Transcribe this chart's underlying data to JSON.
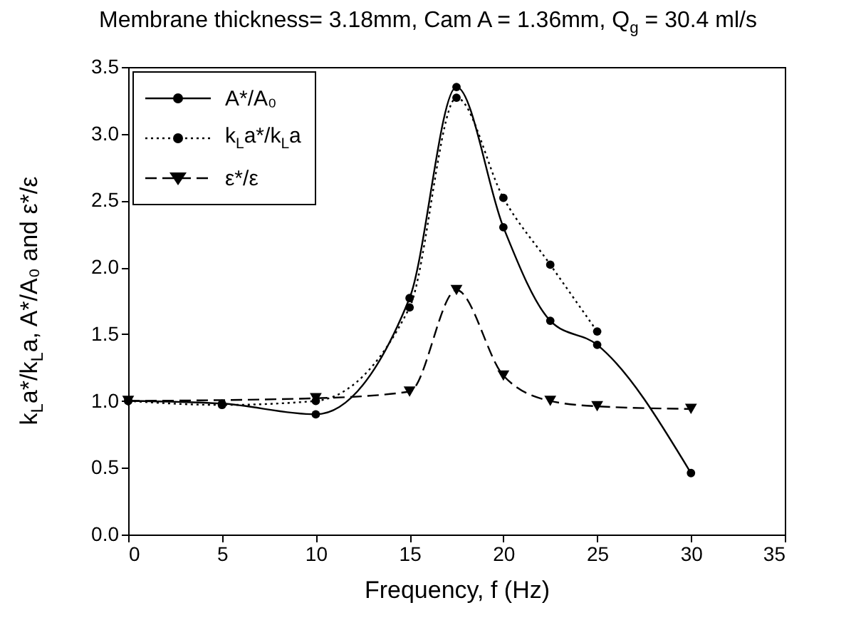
{
  "chart_data": {
    "type": "line",
    "title": "Membrane thickness= 3.18mm, Cam A = 1.36mm, Q$_{g}$ = 30.4 ml/s",
    "xlabel": "Frequency, f (Hz)",
    "ylabel": "k$_{L}$a*/k$_{L}$a, A*/A₀ and ε*/ε",
    "xlim": [
      0,
      35
    ],
    "xticks": [
      0,
      5,
      10,
      15,
      20,
      25,
      30,
      35
    ],
    "ylim": [
      0,
      3.5
    ],
    "yticks": [
      {
        "value": 0,
        "label": "0.0"
      },
      {
        "value": 0.5,
        "label": "0.5"
      },
      {
        "value": 1,
        "label": "1.0"
      },
      {
        "value": 1.5,
        "label": "1.5"
      },
      {
        "value": 2,
        "label": "2.0"
      },
      {
        "value": 2.5,
        "label": "2.5"
      },
      {
        "value": 3,
        "label": "3.0"
      },
      {
        "value": 3.5,
        "label": "3.5"
      }
    ],
    "legend": "top left",
    "grid": false,
    "series": [
      {
        "name": "A*/A₀",
        "color": "#000000",
        "marker": "circle",
        "line_style": "solid",
        "x": [
          0,
          5,
          10,
          15,
          17.5,
          20,
          22.5,
          25,
          30
        ],
        "values": [
          1.0,
          0.98,
          0.9,
          1.77,
          3.35,
          2.3,
          1.6,
          1.42,
          0.46
        ]
      },
      {
        "name": "k$_{L}$a*/k$_{L}$a",
        "color": "#000000",
        "marker": "circle",
        "line_style": "dotted",
        "x": [
          0,
          5,
          10,
          15,
          17.5,
          20,
          22.5,
          25
        ],
        "values": [
          1.0,
          0.97,
          1.0,
          1.7,
          3.27,
          2.52,
          2.02,
          1.52
        ]
      },
      {
        "name": "ε*/ε",
        "color": "#000000",
        "marker": "triangle",
        "line_style": "dashed",
        "x": [
          0,
          10,
          15,
          17.5,
          20,
          22.5,
          25,
          30
        ],
        "values": [
          1.0,
          1.02,
          1.07,
          1.83,
          1.19,
          1.0,
          0.96,
          0.94
        ]
      }
    ]
  }
}
